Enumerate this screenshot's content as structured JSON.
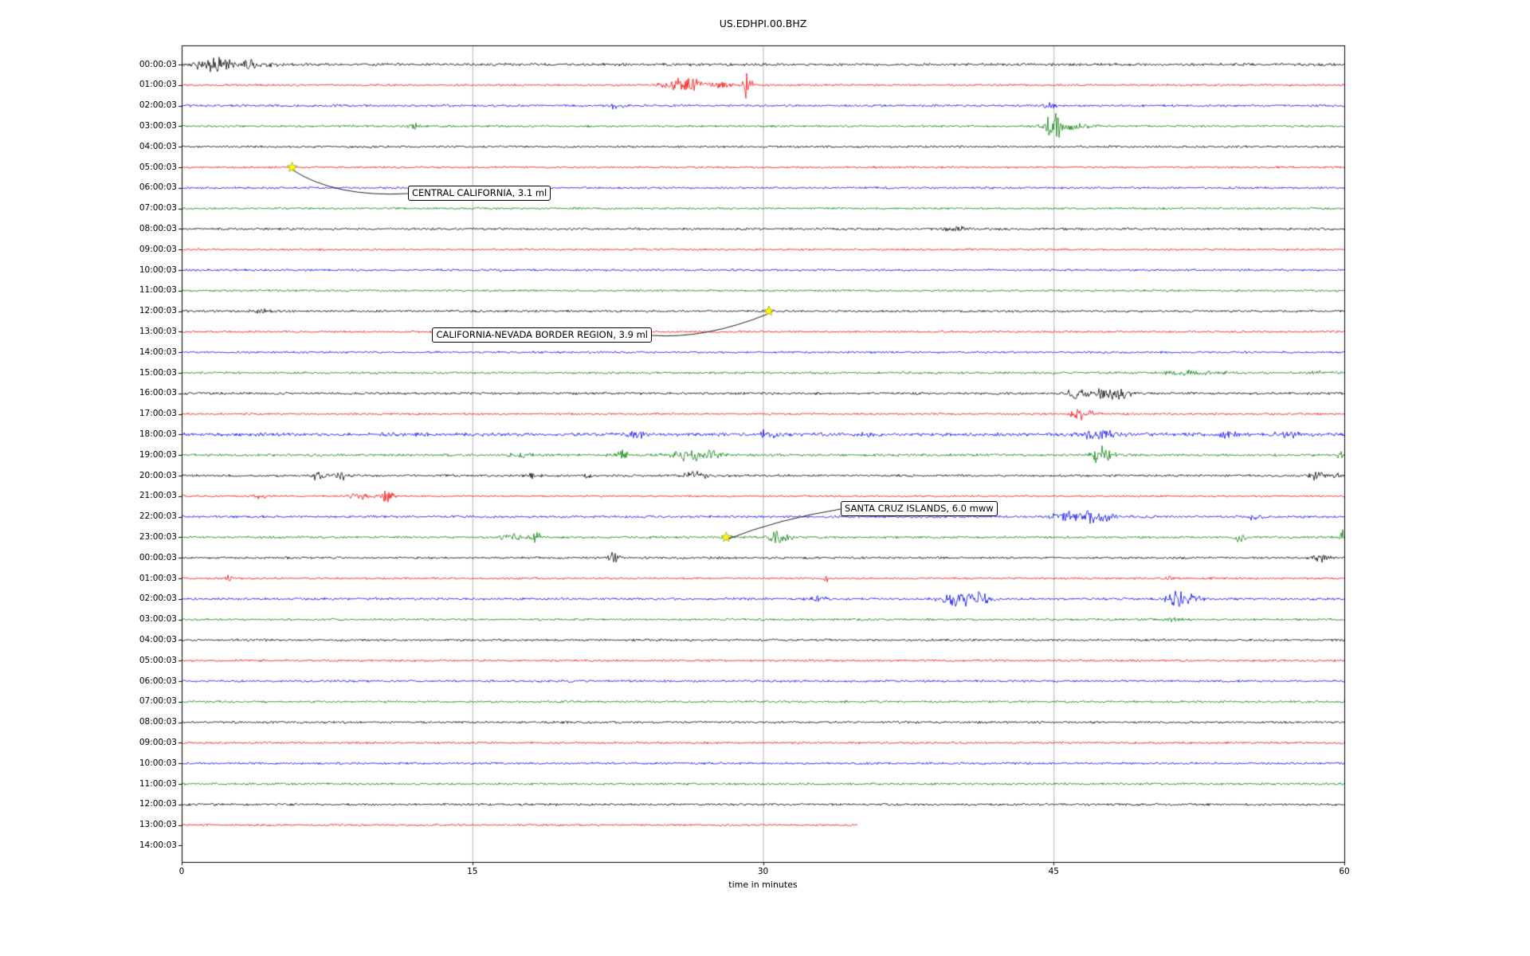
{
  "chart_data": {
    "type": "line",
    "title": "US.EDHPI.00.BHZ",
    "xlabel": "time in minutes",
    "xlim": [
      0,
      60
    ],
    "xticks": [
      "0",
      "15",
      "30",
      "45",
      "60"
    ],
    "grid": {
      "vertical_minutes": [
        15,
        30,
        45
      ],
      "color": "#b3b3b3"
    },
    "trace_color_cycle": [
      "#000000",
      "#ff0000",
      "#0000ff",
      "#008000"
    ],
    "rows": [
      {
        "label": "00:00:03",
        "color": "#000000",
        "amp": 1.8,
        "end": 60,
        "bursts": [
          [
            1.2,
            5,
            1.2
          ],
          [
            2.0,
            6,
            1.5
          ],
          [
            3.6,
            6,
            0.8
          ],
          [
            5.0,
            3,
            1.0
          ]
        ]
      },
      {
        "label": "01:00:03",
        "color": "#ff0000",
        "amp": 1.3,
        "end": 60,
        "bursts": [
          [
            25.3,
            4,
            1.2
          ],
          [
            26.3,
            7,
            1.8
          ],
          [
            28.0,
            4,
            1.0
          ],
          [
            29.2,
            15,
            0.5
          ]
        ]
      },
      {
        "label": "02:00:03",
        "color": "#0000ff",
        "amp": 1.5,
        "end": 60,
        "bursts": [
          [
            22.4,
            3,
            0.8
          ],
          [
            44.8,
            4,
            0.6
          ]
        ]
      },
      {
        "label": "03:00:03",
        "color": "#008000",
        "amp": 1.5,
        "end": 60,
        "bursts": [
          [
            12.0,
            5,
            0.7
          ],
          [
            44.9,
            14,
            1.0
          ],
          [
            45.8,
            5,
            2.0
          ]
        ]
      },
      {
        "label": "04:00:03",
        "color": "#000000",
        "amp": 1.4,
        "end": 60,
        "bursts": []
      },
      {
        "label": "05:00:03",
        "color": "#ff0000",
        "amp": 1.3,
        "end": 60,
        "bursts": []
      },
      {
        "label": "06:00:03",
        "color": "#0000ff",
        "amp": 1.4,
        "end": 60,
        "bursts": []
      },
      {
        "label": "07:00:03",
        "color": "#008000",
        "amp": 1.4,
        "end": 60,
        "bursts": []
      },
      {
        "label": "08:00:03",
        "color": "#000000",
        "amp": 1.5,
        "end": 60,
        "bursts": [
          [
            40.0,
            2,
            1.5
          ]
        ]
      },
      {
        "label": "09:00:03",
        "color": "#ff0000",
        "amp": 1.3,
        "end": 60,
        "bursts": []
      },
      {
        "label": "10:00:03",
        "color": "#0000ff",
        "amp": 1.4,
        "end": 60,
        "bursts": []
      },
      {
        "label": "11:00:03",
        "color": "#008000",
        "amp": 1.4,
        "end": 60,
        "bursts": []
      },
      {
        "label": "12:00:03",
        "color": "#000000",
        "amp": 1.5,
        "end": 60,
        "bursts": [
          [
            4.0,
            2,
            1.0
          ]
        ]
      },
      {
        "label": "13:00:03",
        "color": "#ff0000",
        "amp": 1.3,
        "end": 60,
        "bursts": []
      },
      {
        "label": "14:00:03",
        "color": "#0000ff",
        "amp": 1.4,
        "end": 60,
        "bursts": []
      },
      {
        "label": "15:00:03",
        "color": "#008000",
        "amp": 1.5,
        "end": 60,
        "bursts": [
          [
            52.3,
            3,
            3.0
          ],
          [
            58.8,
            2,
            1.0
          ]
        ]
      },
      {
        "label": "16:00:03",
        "color": "#000000",
        "amp": 1.6,
        "end": 60,
        "bursts": [
          [
            46.2,
            6,
            1.0
          ],
          [
            47.8,
            9,
            1.2
          ],
          [
            48.6,
            5,
            0.8
          ]
        ]
      },
      {
        "label": "17:00:03",
        "color": "#ff0000",
        "amp": 1.3,
        "end": 60,
        "bursts": [
          [
            46.3,
            7,
            0.8
          ],
          [
            47.1,
            4,
            0.6
          ]
        ]
      },
      {
        "label": "18:00:03",
        "color": "#0000ff",
        "amp": 2.2,
        "end": 60,
        "bursts": [
          [
            23.5,
            4,
            1.0
          ],
          [
            30.2,
            5,
            0.8
          ],
          [
            35.2,
            3,
            1.0
          ],
          [
            47.3,
            7,
            1.5
          ],
          [
            54.0,
            3,
            1.0
          ],
          [
            57.2,
            4,
            1.5
          ]
        ]
      },
      {
        "label": "19:00:03",
        "color": "#008000",
        "amp": 1.7,
        "end": 60,
        "bursts": [
          [
            17.5,
            4,
            1.0
          ],
          [
            22.7,
            5,
            0.8
          ],
          [
            26.2,
            7,
            1.8
          ],
          [
            27.4,
            4,
            1.0
          ],
          [
            47.5,
            12,
            1.0
          ],
          [
            59.8,
            4,
            0.5
          ]
        ]
      },
      {
        "label": "20:00:03",
        "color": "#000000",
        "amp": 1.6,
        "end": 60,
        "bursts": [
          [
            7.0,
            5,
            0.7
          ],
          [
            8.2,
            6,
            0.8
          ],
          [
            18.2,
            3,
            0.6
          ],
          [
            21.0,
            3,
            0.5
          ],
          [
            26.5,
            4,
            1.2
          ],
          [
            58.6,
            5,
            1.0
          ],
          [
            59.6,
            4,
            0.5
          ]
        ]
      },
      {
        "label": "21:00:03",
        "color": "#ff0000",
        "amp": 1.3,
        "end": 60,
        "bursts": [
          [
            4.0,
            3,
            0.8
          ],
          [
            9.2,
            6,
            0.9
          ],
          [
            10.6,
            6,
            0.7
          ]
        ]
      },
      {
        "label": "22:00:03",
        "color": "#0000ff",
        "amp": 1.6,
        "end": 60,
        "bursts": [
          [
            45.4,
            6,
            1.2
          ],
          [
            46.6,
            8,
            1.5
          ],
          [
            47.7,
            4,
            1.0
          ],
          [
            55.3,
            3,
            0.8
          ]
        ]
      },
      {
        "label": "23:00:03",
        "color": "#008000",
        "amp": 1.6,
        "end": 60,
        "bursts": [
          [
            17.0,
            5,
            0.8
          ],
          [
            18.3,
            7,
            0.6
          ],
          [
            28.1,
            3,
            0.5
          ],
          [
            30.8,
            8,
            1.0
          ],
          [
            54.6,
            6,
            0.5
          ],
          [
            59.9,
            7,
            0.4
          ]
        ]
      },
      {
        "label": "00:00:03",
        "color": "#000000",
        "amp": 1.5,
        "end": 60,
        "bursts": [
          [
            22.3,
            7,
            0.5
          ],
          [
            58.8,
            5,
            0.8
          ]
        ]
      },
      {
        "label": "01:00:03",
        "color": "#ff0000",
        "amp": 1.3,
        "end": 60,
        "bursts": [
          [
            2.5,
            4,
            0.5
          ],
          [
            33.2,
            6,
            0.3
          ],
          [
            51.0,
            3,
            0.4
          ]
        ]
      },
      {
        "label": "02:00:03",
        "color": "#0000ff",
        "amp": 1.6,
        "end": 60,
        "bursts": [
          [
            33.0,
            4,
            0.8
          ],
          [
            40.0,
            8,
            1.5
          ],
          [
            41.2,
            9,
            1.2
          ],
          [
            51.3,
            13,
            0.8
          ],
          [
            52.2,
            5,
            0.8
          ]
        ]
      },
      {
        "label": "03:00:03",
        "color": "#008000",
        "amp": 1.5,
        "end": 60,
        "bursts": [
          [
            51.2,
            4,
            0.5
          ]
        ]
      },
      {
        "label": "04:00:03",
        "color": "#000000",
        "amp": 1.5,
        "end": 60,
        "bursts": []
      },
      {
        "label": "05:00:03",
        "color": "#ff0000",
        "amp": 1.4,
        "end": 60,
        "bursts": []
      },
      {
        "label": "06:00:03",
        "color": "#0000ff",
        "amp": 1.5,
        "end": 60,
        "bursts": []
      },
      {
        "label": "07:00:03",
        "color": "#008000",
        "amp": 1.5,
        "end": 60,
        "bursts": []
      },
      {
        "label": "08:00:03",
        "color": "#000000",
        "amp": 1.5,
        "end": 60,
        "bursts": []
      },
      {
        "label": "09:00:03",
        "color": "#ff0000",
        "amp": 1.4,
        "end": 60,
        "bursts": []
      },
      {
        "label": "10:00:03",
        "color": "#0000ff",
        "amp": 1.5,
        "end": 60,
        "bursts": []
      },
      {
        "label": "11:00:03",
        "color": "#008000",
        "amp": 1.5,
        "end": 60,
        "bursts": []
      },
      {
        "label": "12:00:03",
        "color": "#000000",
        "amp": 1.5,
        "end": 60,
        "bursts": []
      },
      {
        "label": "13:00:03",
        "color": "#ff0000",
        "amp": 1.3,
        "end": 34.9,
        "bursts": []
      },
      {
        "label": "14:00:03",
        "color": "#000000",
        "amp": 0,
        "end": 0,
        "bursts": []
      }
    ],
    "events": [
      {
        "label": "CENTRAL CALIFORNIA, 3.1 ml",
        "row": 5,
        "minute": 5.7,
        "marker": "yellow-star"
      },
      {
        "label": "CALIFORNIA-NEVADA BORDER REGION, 3.9 ml",
        "row": 12,
        "minute": 30.3,
        "marker": "yellow-star"
      },
      {
        "label": "SANTA CRUZ ISLANDS, 6.0 mww",
        "row": 23,
        "minute": 28.1,
        "marker": "yellow-star"
      }
    ],
    "marker_color": "#ffff00"
  }
}
